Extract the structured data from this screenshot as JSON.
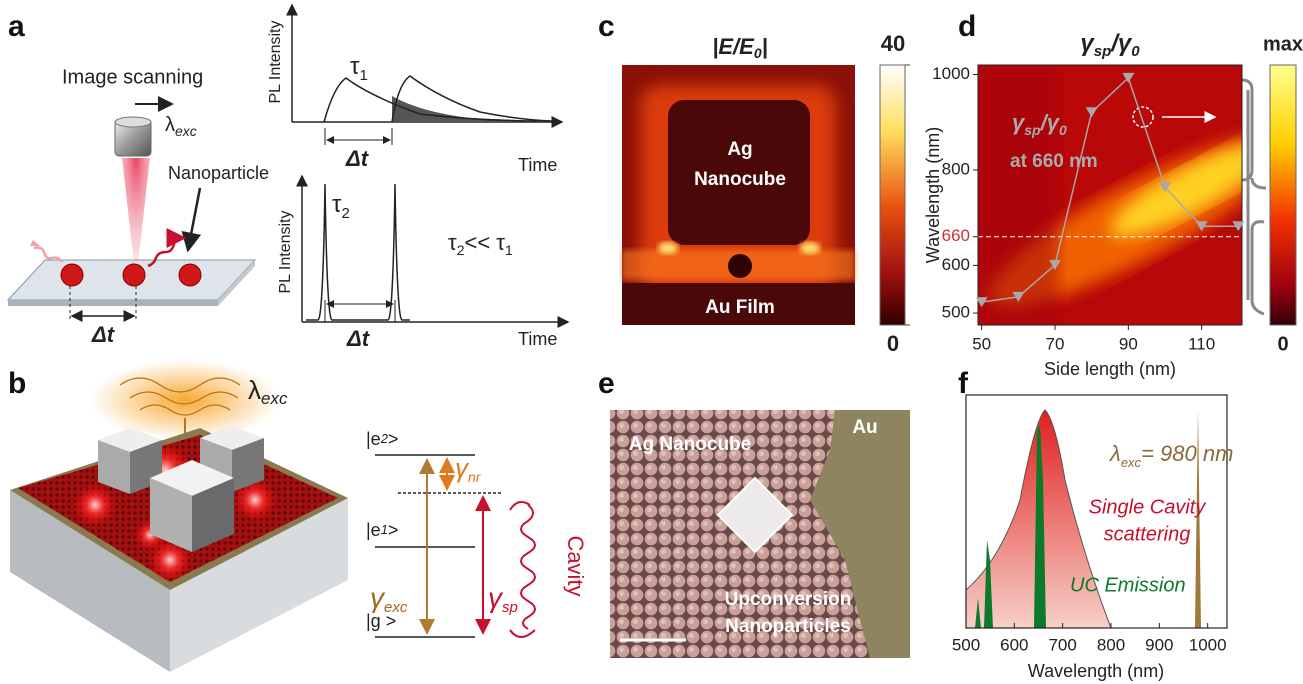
{
  "a": {
    "label": "a",
    "scan": "Image scanning",
    "lambda": "λ",
    "lambda_sub": "exc",
    "particle": "Nanoparticle",
    "delta": "Δt",
    "top_plot": {
      "ylabel": "PL Intensity",
      "xlabel": "Time",
      "tau": "τ",
      "tau_sub": "1",
      "delta": "Δt"
    },
    "bottom_plot": {
      "ylabel": "PL Intensity",
      "xlabel": "Time",
      "tau": "τ",
      "tau_sub": "2",
      "delta": "Δt",
      "relation": [
        "τ",
        "2",
        "<< τ",
        "1"
      ]
    }
  },
  "b": {
    "label": "b",
    "lambda": "λ",
    "lambda_sub": "exc",
    "levels": [
      [
        "|e",
        "2",
        ">"
      ],
      [
        "|e",
        "1",
        ">"
      ],
      [
        "|g >"
      ]
    ],
    "gamma_exc": [
      "γ",
      "exc"
    ],
    "gamma_nr": [
      "γ",
      "nr"
    ],
    "gamma_sp": [
      "γ",
      "sp"
    ],
    "cavity": "Cavity"
  },
  "c": {
    "label": "c",
    "title": [
      "|E/E",
      "0",
      "|"
    ],
    "ag": "Ag",
    "nanocube": "Nanocube",
    "film": "Au Film",
    "colorbar": {
      "lim": [
        0,
        40
      ],
      "ticks": [
        0,
        40
      ]
    }
  },
  "d": {
    "label": "d",
    "title": [
      "γ",
      "sp",
      "/γ",
      "0"
    ],
    "ylabel": "Wavelength (nm)",
    "xlabel": "Side length (nm)",
    "x": [
      50,
      60,
      70,
      80,
      90,
      100,
      110,
      120
    ],
    "values": [
      523,
      534,
      601,
      921,
      993,
      764,
      682,
      682
    ],
    "xlim": [
      49,
      121
    ],
    "xticks": [
      50,
      70,
      90,
      110
    ],
    "ylim": [
      475,
      1020
    ],
    "yticks": [
      500,
      600,
      660,
      800,
      1000
    ],
    "highlight": 660,
    "inset_title": [
      "γ",
      "sp",
      "/γ",
      "0"
    ],
    "inset_note": "at 660 nm",
    "colorbar": {
      "max": "max",
      "min": "0"
    }
  },
  "e": {
    "label": "e",
    "ag": "Ag Nanocube",
    "au": "Au",
    "uc1": "Upconversion",
    "uc2": "Nanoparticles"
  },
  "f": {
    "label": "f",
    "xlabel": "Wavelength (nm)",
    "xlim": [
      500,
      1040
    ],
    "xticks": [
      500,
      600,
      700,
      800,
      900,
      1000
    ],
    "lambda": [
      "λ",
      "exc",
      "= 980 nm"
    ],
    "scatter1": "Single Cavity",
    "scatter2": "scattering",
    "uc": "UC Emission"
  }
}
